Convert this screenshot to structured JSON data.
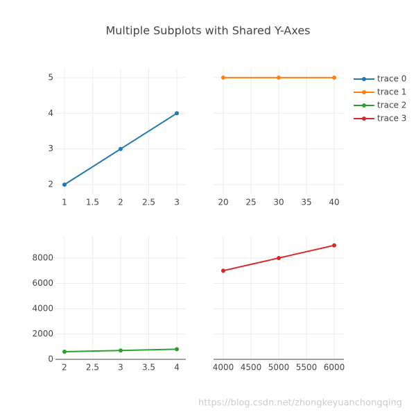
{
  "title": "Multiple Subplots with Shared Y-Axes",
  "watermark": "https://blog.csdn.net/zhongkeyuanchongqing",
  "chart_data": [
    {
      "type": "line",
      "x": [
        1,
        2,
        3
      ],
      "series": [
        {
          "name": "trace 0",
          "color": "#1f77b4",
          "values": [
            2,
            3,
            4
          ]
        }
      ],
      "xlim": [
        0.84,
        3.16
      ],
      "xticks": [
        1,
        1.5,
        2,
        2.5,
        3
      ],
      "ylim": [
        1.73,
        5.27
      ],
      "yticks": [
        2,
        3,
        4,
        5
      ],
      "grid": true
    },
    {
      "type": "line",
      "x": [
        20,
        30,
        40
      ],
      "series": [
        {
          "name": "trace 1",
          "color": "#ff7f0e",
          "values": [
            5,
            5,
            5
          ]
        }
      ],
      "xlim": [
        18.25,
        41.75
      ],
      "xticks": [
        20,
        25,
        30,
        35,
        40
      ],
      "ylim": [
        1.73,
        5.27
      ],
      "yticks": [
        2,
        3,
        4,
        5
      ],
      "grid": true
    },
    {
      "type": "line",
      "x": [
        2,
        3,
        4
      ],
      "series": [
        {
          "name": "trace 2",
          "color": "#2ca02c",
          "values": [
            600,
            700,
            800
          ]
        }
      ],
      "xlim": [
        1.84,
        4.16
      ],
      "xticks": [
        2,
        2.5,
        3,
        3.5,
        4
      ],
      "ylim": [
        0,
        9750
      ],
      "yticks": [
        0,
        2000,
        4000,
        6000,
        8000
      ],
      "grid": true
    },
    {
      "type": "line",
      "x": [
        4000,
        5000,
        6000
      ],
      "series": [
        {
          "name": "trace 3",
          "color": "#d62728",
          "values": [
            7000,
            8000,
            9000
          ]
        }
      ],
      "xlim": [
        3825,
        6175
      ],
      "xticks": [
        4000,
        4500,
        5000,
        5500,
        6000
      ],
      "ylim": [
        0,
        9750
      ],
      "yticks": [
        0,
        2000,
        4000,
        6000,
        8000
      ],
      "grid": true
    }
  ]
}
